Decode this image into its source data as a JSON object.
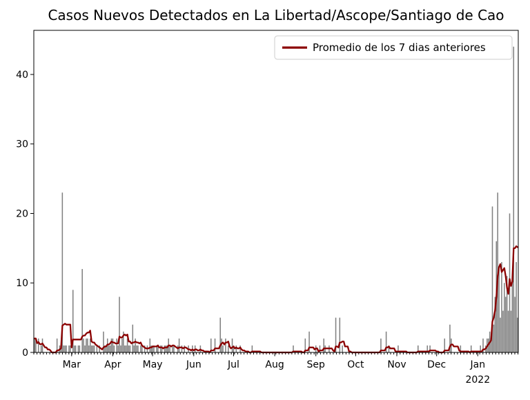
{
  "figure": {
    "title": "Casos Nuevos Detectados en La Libertad/Ascope/Santiago de Cao"
  },
  "chart_data": {
    "type": "bar",
    "title": "Casos Nuevos Detectados en La Libertad/Ascope/Santiago de Cao",
    "xlabel": "",
    "ylabel": "",
    "grid": false,
    "background_color": "#ffffff",
    "bar_color": "#808080",
    "line_color": "#8b0000",
    "ylim": [
      0,
      46.35
    ],
    "y_ticks": [
      0,
      10,
      20,
      30,
      40
    ],
    "x_ticklabels": [
      "Mar",
      "Apr",
      "May",
      "Jun",
      "Jul",
      "Aug",
      "Sep",
      "Oct",
      "Nov",
      "Dec",
      "Jan"
    ],
    "x_year_label": "2022",
    "x_year_tick_index": 10,
    "month_start_indices": [
      28,
      59,
      89,
      120,
      150,
      181,
      212,
      242,
      273,
      303,
      334
    ],
    "days_total": 365,
    "x_range_note": "daily values, day 0 = 1 Feb 2021, day 364 = 31 Jan 2022",
    "legend": {
      "label": "Promedio de los 7 dias anteriores",
      "position": "upper right"
    },
    "series": [
      {
        "name": "daily_new_cases",
        "type": "bar",
        "values": [
          2,
          2,
          0,
          2,
          0,
          1,
          2,
          0,
          0,
          0,
          0,
          0,
          0,
          0,
          0,
          0,
          0,
          2,
          0,
          1,
          1,
          23,
          1,
          1,
          1,
          0,
          1,
          1,
          0,
          9,
          1,
          1,
          0,
          1,
          1,
          0,
          12,
          2,
          1,
          2,
          2,
          1,
          2,
          1,
          1,
          1,
          0,
          1,
          0,
          1,
          0,
          0,
          3,
          1,
          1,
          2,
          1,
          1,
          2,
          2,
          1,
          0,
          2,
          1,
          8,
          1,
          2,
          3,
          1,
          1,
          2,
          1,
          1,
          0,
          4,
          1,
          2,
          1,
          1,
          0,
          1,
          1,
          0,
          1,
          0,
          1,
          0,
          2,
          1,
          1,
          1,
          0,
          1,
          1,
          0,
          1,
          1,
          0,
          1,
          1,
          1,
          2,
          1,
          0,
          1,
          1,
          0,
          0,
          1,
          2,
          0,
          1,
          0,
          1,
          0,
          0,
          1,
          0,
          0,
          1,
          0,
          1,
          0,
          0,
          0,
          1,
          0,
          0,
          0,
          0,
          0,
          0,
          0,
          2,
          0,
          0,
          2,
          0,
          0,
          0,
          5,
          2,
          1,
          0,
          2,
          0,
          1,
          0,
          0,
          2,
          1,
          0,
          1,
          0,
          0,
          1,
          0,
          0,
          0,
          0,
          0,
          0,
          0,
          0,
          1,
          0,
          0,
          0,
          0,
          0,
          0,
          0,
          0,
          0,
          0,
          0,
          0,
          0,
          0,
          0,
          0,
          0,
          0,
          0,
          0,
          0,
          0,
          0,
          0,
          0,
          0,
          0,
          0,
          0,
          0,
          1,
          0,
          0,
          0,
          0,
          0,
          0,
          0,
          0,
          2,
          0,
          0,
          3,
          0,
          0,
          0,
          0,
          1,
          0,
          0,
          1,
          0,
          0,
          2,
          1,
          0,
          0,
          1,
          0,
          0,
          0,
          0,
          5,
          0,
          0,
          5,
          0,
          1,
          0,
          0,
          0,
          0,
          0,
          0,
          0,
          0,
          0,
          0,
          0,
          0,
          0,
          0,
          0,
          0,
          0,
          0,
          0,
          0,
          0,
          0,
          0,
          0,
          0,
          0,
          0,
          0,
          2,
          0,
          0,
          0,
          3,
          0,
          1,
          0,
          0,
          0,
          0,
          0,
          0,
          1,
          0,
          0,
          0,
          0,
          0,
          0,
          0,
          0,
          0,
          0,
          0,
          0,
          0,
          0,
          1,
          0,
          0,
          0,
          0,
          0,
          0,
          1,
          0,
          1,
          0,
          0,
          0,
          0,
          0,
          0,
          0,
          0,
          0,
          0,
          2,
          0,
          0,
          0,
          4,
          2,
          0,
          0,
          0,
          0,
          0,
          0,
          1,
          0,
          0,
          0,
          0,
          0,
          0,
          0,
          1,
          0,
          0,
          0,
          0,
          0,
          0,
          1,
          0,
          2,
          0,
          1,
          2,
          2,
          3,
          2,
          21,
          4,
          8,
          16,
          23,
          12,
          5,
          13,
          6,
          10,
          8,
          11,
          6,
          20,
          6,
          10,
          44,
          8,
          13,
          5
        ]
      },
      {
        "name": "promedio_7_dias",
        "type": "line",
        "derived": "trailing 7-day mean of daily_new_cases"
      }
    ]
  }
}
